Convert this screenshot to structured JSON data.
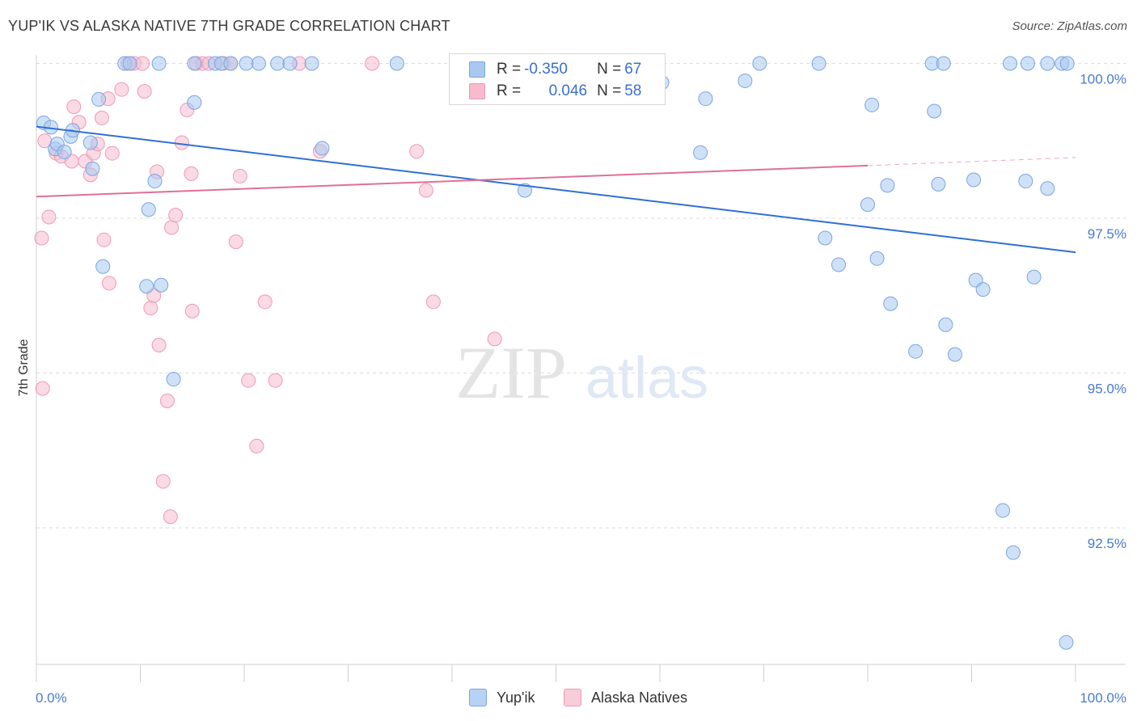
{
  "header": {
    "title": "YUP'IK VS ALASKA NATIVE 7TH GRADE CORRELATION CHART",
    "source": "Source: ZipAtlas.com"
  },
  "watermark": {
    "zip": "ZIP",
    "atlas": "atlas"
  },
  "legend": {
    "rows": [
      {
        "r_label": "R = ",
        "r_value": "-0.350",
        "n_label": "N = ",
        "n_value": "67"
      },
      {
        "r_label": "R = ",
        "r_value": "0.046",
        "n_label": "N = ",
        "n_value": "58"
      }
    ]
  },
  "bottom_legend": [
    "Yup'ik",
    "Alaska Natives"
  ],
  "colors": {
    "blue_fill": "#a8c8f0",
    "blue_stroke": "#7aa6e0",
    "blue_line": "#2f6fd6",
    "pink_fill": "#f6bccd",
    "pink_stroke": "#ee9ab4",
    "pink_line": "#e06f98",
    "grid": "#dcdcdc",
    "tick_text": "#4a7bd0"
  },
  "chart_data": {
    "type": "scatter",
    "title": "YUP'IK VS ALASKA NATIVE 7TH GRADE CORRELATION CHART",
    "xlabel": "",
    "ylabel": "7th Grade",
    "xlim": [
      0,
      100
    ],
    "ylim": [
      90.5,
      100.4
    ],
    "x_tick_labels": [
      "0.0%",
      "100.0%"
    ],
    "y_ticks": [
      92.5,
      95.0,
      97.5,
      100.0
    ],
    "y_tick_labels": [
      "92.5%",
      "95.0%",
      "97.5%",
      "100.0%"
    ],
    "grid": true,
    "series": [
      {
        "name": "Yup'ik",
        "R": -0.35,
        "N": 67,
        "trend": {
          "x": [
            0,
            100
          ],
          "y": [
            98.98,
            96.95
          ]
        },
        "points": [
          [
            0.7,
            99.04
          ],
          [
            1.4,
            98.97
          ],
          [
            1.8,
            98.62
          ],
          [
            2.0,
            98.7
          ],
          [
            2.7,
            98.57
          ],
          [
            3.3,
            98.82
          ],
          [
            5.2,
            98.72
          ],
          [
            8.5,
            100.0
          ],
          [
            9.0,
            100.0
          ],
          [
            11.8,
            100.0
          ],
          [
            15.2,
            100.0
          ],
          [
            17.2,
            100.0
          ],
          [
            17.8,
            100.0
          ],
          [
            18.7,
            100.0
          ],
          [
            20.2,
            100.0
          ],
          [
            21.4,
            100.0
          ],
          [
            23.2,
            100.0
          ],
          [
            24.4,
            100.0
          ],
          [
            26.5,
            100.0
          ],
          [
            34.7,
            100.0
          ],
          [
            59.8,
            100.0
          ],
          [
            69.6,
            100.0
          ],
          [
            75.3,
            100.0
          ],
          [
            86.2,
            100.0
          ],
          [
            87.3,
            100.0
          ],
          [
            93.7,
            100.0
          ],
          [
            95.4,
            100.0
          ],
          [
            97.3,
            100.0
          ],
          [
            98.7,
            100.0
          ],
          [
            99.2,
            100.0
          ],
          [
            6.0,
            99.42
          ],
          [
            15.2,
            99.37
          ],
          [
            60.2,
            99.69
          ],
          [
            64.4,
            99.43
          ],
          [
            68.2,
            99.72
          ],
          [
            80.4,
            99.33
          ],
          [
            86.4,
            99.23
          ],
          [
            3.5,
            98.92
          ],
          [
            5.4,
            98.3
          ],
          [
            11.4,
            98.1
          ],
          [
            27.5,
            98.63
          ],
          [
            47.0,
            97.95
          ],
          [
            63.9,
            98.56
          ],
          [
            80.0,
            97.72
          ],
          [
            81.9,
            98.03
          ],
          [
            86.8,
            98.05
          ],
          [
            90.2,
            98.12
          ],
          [
            95.2,
            98.1
          ],
          [
            97.3,
            97.98
          ],
          [
            6.4,
            96.72
          ],
          [
            10.6,
            96.4
          ],
          [
            10.8,
            97.64
          ],
          [
            12.0,
            96.42
          ],
          [
            13.2,
            94.9
          ],
          [
            75.9,
            97.18
          ],
          [
            77.2,
            96.75
          ],
          [
            80.9,
            96.85
          ],
          [
            82.2,
            96.12
          ],
          [
            84.6,
            95.35
          ],
          [
            87.5,
            95.78
          ],
          [
            88.4,
            95.3
          ],
          [
            90.4,
            96.5
          ],
          [
            91.1,
            96.35
          ],
          [
            96.0,
            96.55
          ],
          [
            93.0,
            92.78
          ],
          [
            94.0,
            92.1
          ],
          [
            99.1,
            90.65
          ]
        ]
      },
      {
        "name": "Alaska Natives",
        "R": 0.046,
        "N": 58,
        "trend": {
          "x": [
            0,
            80
          ],
          "y": [
            97.85,
            98.35
          ]
        },
        "trend_extension": {
          "x": [
            80,
            100
          ],
          "y": [
            98.35,
            98.48
          ]
        },
        "points": [
          [
            0.6,
            94.75
          ],
          [
            0.5,
            97.18
          ],
          [
            0.8,
            98.75
          ],
          [
            1.2,
            97.52
          ],
          [
            1.9,
            98.55
          ],
          [
            2.4,
            98.5
          ],
          [
            3.4,
            98.42
          ],
          [
            3.6,
            99.3
          ],
          [
            4.1,
            99.05
          ],
          [
            4.7,
            98.42
          ],
          [
            5.2,
            98.2
          ],
          [
            5.5,
            98.55
          ],
          [
            5.9,
            98.7
          ],
          [
            6.3,
            99.12
          ],
          [
            6.9,
            99.43
          ],
          [
            6.5,
            97.15
          ],
          [
            7.0,
            96.45
          ],
          [
            7.3,
            98.55
          ],
          [
            8.2,
            99.58
          ],
          [
            8.8,
            100.0
          ],
          [
            9.4,
            100.0
          ],
          [
            10.2,
            100.0
          ],
          [
            10.4,
            99.55
          ],
          [
            11.0,
            96.05
          ],
          [
            11.3,
            96.25
          ],
          [
            11.6,
            98.25
          ],
          [
            11.8,
            95.45
          ],
          [
            12.2,
            93.25
          ],
          [
            12.6,
            94.55
          ],
          [
            12.9,
            92.68
          ],
          [
            13.0,
            97.35
          ],
          [
            13.4,
            97.55
          ],
          [
            14.0,
            98.72
          ],
          [
            14.5,
            99.25
          ],
          [
            14.9,
            98.22
          ],
          [
            15.0,
            96.0
          ],
          [
            15.4,
            100.0
          ],
          [
            16.0,
            100.0
          ],
          [
            16.6,
            100.0
          ],
          [
            18.0,
            100.0
          ],
          [
            18.7,
            100.0
          ],
          [
            19.2,
            97.12
          ],
          [
            19.6,
            98.18
          ],
          [
            20.4,
            94.88
          ],
          [
            21.2,
            93.82
          ],
          [
            22.0,
            96.15
          ],
          [
            23.0,
            94.88
          ],
          [
            25.3,
            100.0
          ],
          [
            27.3,
            98.58
          ],
          [
            32.3,
            100.0
          ],
          [
            36.6,
            98.58
          ],
          [
            37.5,
            97.95
          ],
          [
            38.2,
            96.15
          ],
          [
            44.1,
            95.55
          ],
          [
            45.0,
            100.0
          ],
          [
            46.6,
            100.0
          ],
          [
            47.5,
            100.0
          ],
          [
            48.2,
            100.0
          ]
        ]
      }
    ]
  }
}
